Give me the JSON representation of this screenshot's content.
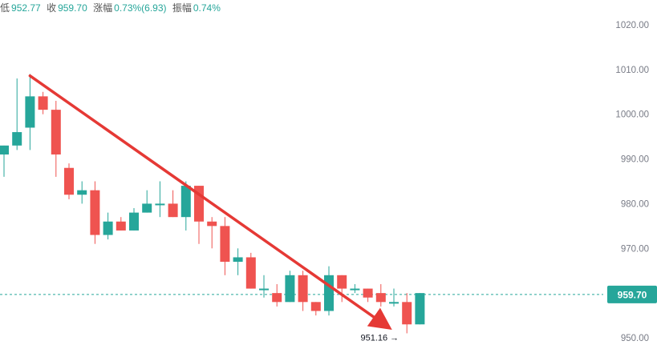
{
  "info_bar": {
    "low_label": "低",
    "low_value": "952.77",
    "close_label": "收",
    "close_value": "959.70",
    "change_label": "涨幅",
    "change_value": "0.73%(6.93)",
    "amplitude_label": "振幅",
    "amplitude_value": "0.74%"
  },
  "colors": {
    "up": "#26a69a",
    "down": "#ef5350",
    "trend": "#e53935",
    "axis_text": "#787b86",
    "price_tag_bg": "#26a69a",
    "price_line": "#26a69a"
  },
  "chart_data": {
    "type": "candlestick",
    "y_axis": {
      "ticks": [
        950,
        960,
        970,
        980,
        990,
        1000,
        1010,
        1020
      ],
      "tick_labels": [
        "950.00",
        "960.00",
        "970.00",
        "980.00",
        "990.00",
        "1000.00",
        "1010.00",
        "1020.00"
      ],
      "range": [
        948,
        1027
      ],
      "side": "right"
    },
    "last_price": 959.7,
    "last_price_label": "959.70",
    "low_marker": {
      "value": 951.16,
      "label": "951.16 →"
    },
    "trend_line": {
      "from": {
        "candle_index": 2,
        "price": 1008.6
      },
      "to": {
        "candle_index": 30,
        "price": 952.5
      },
      "arrow": true
    },
    "candles": [
      {
        "o": 991,
        "h": 993,
        "l": 986,
        "c": 993
      },
      {
        "o": 993,
        "h": 1008,
        "l": 992,
        "c": 996
      },
      {
        "o": 997,
        "h": 1009,
        "l": 992,
        "c": 1004
      },
      {
        "o": 1004,
        "h": 1005,
        "l": 1000,
        "c": 1001
      },
      {
        "o": 1001,
        "h": 1003,
        "l": 986,
        "c": 991
      },
      {
        "o": 988,
        "h": 989,
        "l": 981,
        "c": 982
      },
      {
        "o": 982,
        "h": 985,
        "l": 980,
        "c": 983
      },
      {
        "o": 983,
        "h": 985,
        "l": 971,
        "c": 973
      },
      {
        "o": 973,
        "h": 978,
        "l": 972,
        "c": 976
      },
      {
        "o": 976,
        "h": 977,
        "l": 974,
        "c": 974
      },
      {
        "o": 974,
        "h": 979,
        "l": 974,
        "c": 978
      },
      {
        "o": 978,
        "h": 983,
        "l": 978,
        "c": 980
      },
      {
        "o": 980,
        "h": 985,
        "l": 977,
        "c": 980
      },
      {
        "o": 980,
        "h": 983,
        "l": 977,
        "c": 977
      },
      {
        "o": 977,
        "h": 985,
        "l": 974,
        "c": 984
      },
      {
        "o": 984,
        "h": 984,
        "l": 971,
        "c": 976
      },
      {
        "o": 976,
        "h": 977,
        "l": 970,
        "c": 975
      },
      {
        "o": 975,
        "h": 977,
        "l": 964,
        "c": 967
      },
      {
        "o": 967,
        "h": 970,
        "l": 964,
        "c": 968
      },
      {
        "o": 968,
        "h": 969,
        "l": 961,
        "c": 961
      },
      {
        "o": 961,
        "h": 964,
        "l": 959,
        "c": 961
      },
      {
        "o": 960,
        "h": 962,
        "l": 957,
        "c": 958
      },
      {
        "o": 958,
        "h": 965,
        "l": 958,
        "c": 964
      },
      {
        "o": 964,
        "h": 965,
        "l": 956,
        "c": 958
      },
      {
        "o": 958,
        "h": 958,
        "l": 955,
        "c": 956
      },
      {
        "o": 956,
        "h": 966,
        "l": 955,
        "c": 964
      },
      {
        "o": 964,
        "h": 964,
        "l": 958,
        "c": 961
      },
      {
        "o": 961,
        "h": 962,
        "l": 960,
        "c": 961
      },
      {
        "o": 961,
        "h": 961,
        "l": 958,
        "c": 959
      },
      {
        "o": 960,
        "h": 962,
        "l": 957,
        "c": 958
      },
      {
        "o": 958,
        "h": 961,
        "l": 957,
        "c": 958
      },
      {
        "o": 958,
        "h": 960,
        "l": 951,
        "c": 953
      },
      {
        "o": 953,
        "h": 960,
        "l": 953,
        "c": 960
      }
    ]
  }
}
